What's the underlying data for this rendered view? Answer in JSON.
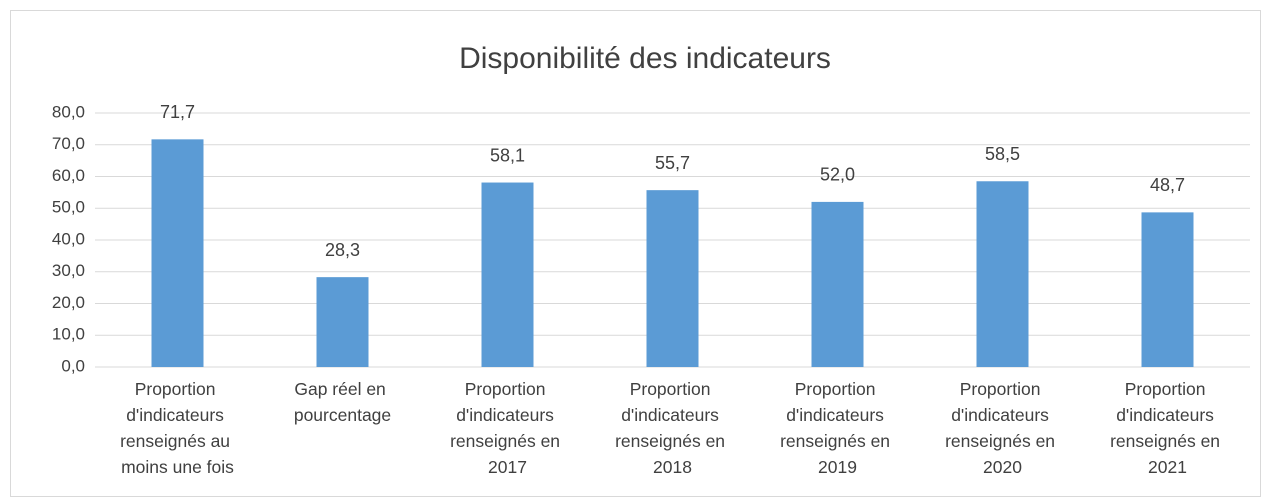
{
  "chart_data": {
    "type": "bar",
    "title": "Disponibilité des indicateurs",
    "categories": [
      "Proportion d'indicateurs renseignés au moins une fois",
      "Gap réel en pourcentage",
      "Proportion d'indicateurs renseignés en 2017",
      "Proportion d'indicateurs renseignés en 2018",
      "Proportion d'indicateurs renseignés en 2019",
      "Proportion d'indicateurs renseignés en 2020",
      "Proportion d'indicateurs renseignés en 2021"
    ],
    "values": [
      71.7,
      28.3,
      58.1,
      55.7,
      52.0,
      58.5,
      48.7
    ],
    "value_labels": [
      "71,7",
      "28,3",
      "58,1",
      "55,7",
      "52,0",
      "58,5",
      "48,7"
    ],
    "color": "#5b9bd5",
    "ylim": [
      0,
      80
    ],
    "yticks": [
      {
        "value": 0,
        "label": "0,0"
      },
      {
        "value": 10,
        "label": "10,0"
      },
      {
        "value": 20,
        "label": "20,0"
      },
      {
        "value": 30,
        "label": "30,0"
      },
      {
        "value": 40,
        "label": "40,0"
      },
      {
        "value": 50,
        "label": "50,0"
      },
      {
        "value": 60,
        "label": "60,0"
      },
      {
        "value": 70,
        "label": "70,0"
      },
      {
        "value": 80,
        "label": "80,0"
      }
    ],
    "grid": true
  }
}
